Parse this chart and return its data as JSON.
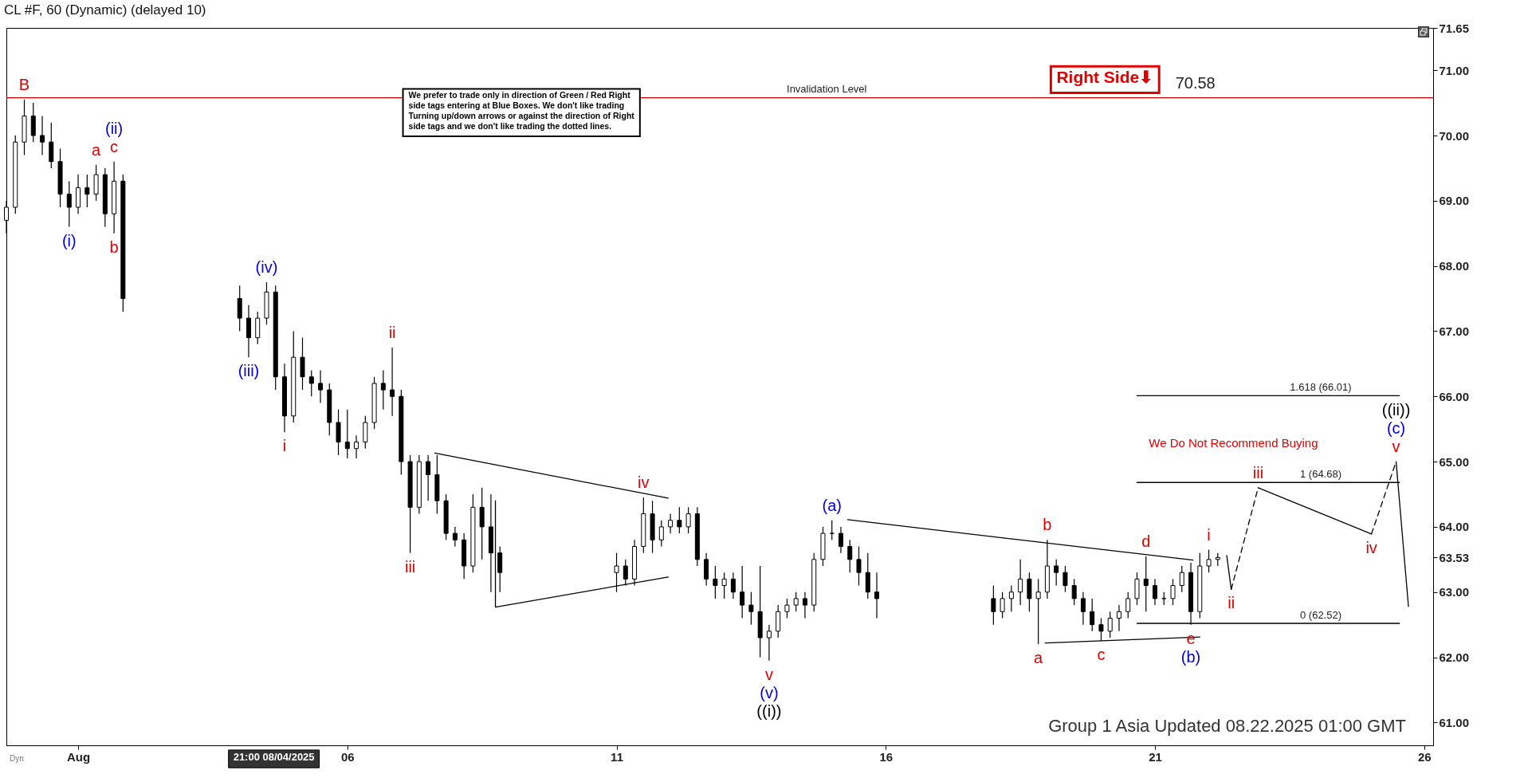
{
  "chart_data": {
    "type": "candlestick",
    "title": "CL #F, 60 (Dynamic) (delayed 10)",
    "color": "#000000",
    "x": [
      "2025-07-30T16:00",
      "2025-07-30T20:00",
      "2025-07-31T00:00",
      "2025-07-31T04:00",
      "2025-07-31T08:00",
      "2025-07-31T12:00",
      "2025-07-31T16:00",
      "2025-07-31T20:00",
      "2025-08-01T00:00",
      "2025-08-01T04:00",
      "2025-08-01T08:00",
      "2025-08-01T12:00",
      "2025-08-01T16:00",
      "2025-08-01T20:00",
      "2025-08-04T00:00",
      "2025-08-04T04:00",
      "2025-08-04T08:00",
      "2025-08-04T12:00",
      "2025-08-04T16:00",
      "2025-08-04T20:00",
      "2025-08-05T00:00",
      "2025-08-05T04:00",
      "2025-08-05T08:00",
      "2025-08-05T12:00",
      "2025-08-05T16:00",
      "2025-08-05T20:00",
      "2025-08-06T00:00",
      "2025-08-06T04:00",
      "2025-08-06T08:00",
      "2025-08-06T12:00",
      "2025-08-06T16:00",
      "2025-08-06T20:00",
      "2025-08-07T00:00",
      "2025-08-07T04:00",
      "2025-08-07T08:00",
      "2025-08-07T12:00",
      "2025-08-07T16:00",
      "2025-08-07T20:00",
      "2025-08-08T00:00",
      "2025-08-08T04:00",
      "2025-08-08T08:00",
      "2025-08-08T12:00",
      "2025-08-08T16:00",
      "2025-08-08T20:00",
      "2025-08-11T00:00",
      "2025-08-11T04:00",
      "2025-08-11T08:00",
      "2025-08-11T12:00",
      "2025-08-11T16:00",
      "2025-08-11T20:00",
      "2025-08-12T00:00",
      "2025-08-12T04:00",
      "2025-08-12T08:00",
      "2025-08-12T12:00",
      "2025-08-12T16:00",
      "2025-08-12T20:00",
      "2025-08-13T00:00",
      "2025-08-13T04:00",
      "2025-08-13T08:00",
      "2025-08-13T12:00",
      "2025-08-13T16:00",
      "2025-08-13T20:00",
      "2025-08-14T00:00",
      "2025-08-14T04:00",
      "2025-08-14T08:00",
      "2025-08-14T12:00",
      "2025-08-14T16:00",
      "2025-08-14T20:00",
      "2025-08-15T00:00",
      "2025-08-15T04:00",
      "2025-08-15T08:00",
      "2025-08-15T12:00",
      "2025-08-15T16:00",
      "2025-08-15T20:00",
      "2025-08-18T00:00",
      "2025-08-18T04:00",
      "2025-08-18T08:00",
      "2025-08-18T12:00",
      "2025-08-18T16:00",
      "2025-08-18T20:00",
      "2025-08-19T00:00",
      "2025-08-19T04:00",
      "2025-08-19T08:00",
      "2025-08-19T12:00",
      "2025-08-19T16:00",
      "2025-08-19T20:00",
      "2025-08-20T00:00",
      "2025-08-20T04:00",
      "2025-08-20T08:00",
      "2025-08-20T12:00",
      "2025-08-20T16:00",
      "2025-08-20T20:00",
      "2025-08-21T00:00",
      "2025-08-21T04:00",
      "2025-08-21T08:00",
      "2025-08-21T12:00",
      "2025-08-21T16:00",
      "2025-08-21T20:00",
      "2025-08-22T00:00",
      "2025-08-22T04:00"
    ],
    "ohlc": [
      [
        68.7,
        69.0,
        68.5,
        68.9
      ],
      [
        68.9,
        70.0,
        68.8,
        69.9
      ],
      [
        69.9,
        70.55,
        69.7,
        70.3
      ],
      [
        70.3,
        70.5,
        69.9,
        70.0
      ],
      [
        70.0,
        70.3,
        69.7,
        69.9
      ],
      [
        69.9,
        70.2,
        69.5,
        69.6
      ],
      [
        69.6,
        69.8,
        68.9,
        69.1
      ],
      [
        69.1,
        69.3,
        68.6,
        68.9
      ],
      [
        68.9,
        69.4,
        68.8,
        69.2
      ],
      [
        69.2,
        69.4,
        68.9,
        69.1
      ],
      [
        69.1,
        69.55,
        69.0,
        69.4
      ],
      [
        69.4,
        69.5,
        68.6,
        68.8
      ],
      [
        68.8,
        69.6,
        68.5,
        69.3
      ],
      [
        69.3,
        69.4,
        67.3,
        67.5
      ],
      [
        67.5,
        67.7,
        67.0,
        67.2
      ],
      [
        67.2,
        67.4,
        66.6,
        66.9
      ],
      [
        66.9,
        67.3,
        66.8,
        67.2
      ],
      [
        67.2,
        67.75,
        67.1,
        67.6
      ],
      [
        67.6,
        67.7,
        66.1,
        66.3
      ],
      [
        66.3,
        66.5,
        65.45,
        65.7
      ],
      [
        65.7,
        67.0,
        65.6,
        66.6
      ],
      [
        66.6,
        66.9,
        66.1,
        66.3
      ],
      [
        66.3,
        66.4,
        66.0,
        66.2
      ],
      [
        66.2,
        66.4,
        65.9,
        66.1
      ],
      [
        66.1,
        66.2,
        65.4,
        65.6
      ],
      [
        65.6,
        65.8,
        65.1,
        65.3
      ],
      [
        65.3,
        65.8,
        65.05,
        65.2
      ],
      [
        65.2,
        65.4,
        65.05,
        65.3
      ],
      [
        65.3,
        65.7,
        65.2,
        65.6
      ],
      [
        65.6,
        66.3,
        65.5,
        66.2
      ],
      [
        66.2,
        66.4,
        65.8,
        66.1
      ],
      [
        66.1,
        66.75,
        65.7,
        66.0
      ],
      [
        66.0,
        66.1,
        64.8,
        65.0
      ],
      [
        65.0,
        65.1,
        63.6,
        64.3
      ],
      [
        64.3,
        65.1,
        64.2,
        65.0
      ],
      [
        65.0,
        65.1,
        64.4,
        64.8
      ],
      [
        64.8,
        65.1,
        64.2,
        64.4
      ],
      [
        64.4,
        64.5,
        63.8,
        63.9
      ],
      [
        63.9,
        64.0,
        63.7,
        63.8
      ],
      [
        63.8,
        63.9,
        63.2,
        63.4
      ],
      [
        63.4,
        64.5,
        63.3,
        64.3
      ],
      [
        64.3,
        64.6,
        63.5,
        64.0
      ],
      [
        64.0,
        64.5,
        63.0,
        63.6
      ],
      [
        63.6,
        63.7,
        63.0,
        63.3
      ],
      [
        63.3,
        63.6,
        63.0,
        63.4
      ],
      [
        63.4,
        63.5,
        63.1,
        63.2
      ],
      [
        63.2,
        63.8,
        63.1,
        63.7
      ],
      [
        63.7,
        64.45,
        63.6,
        64.2
      ],
      [
        64.2,
        64.4,
        63.6,
        63.8
      ],
      [
        63.8,
        64.1,
        63.7,
        64.0
      ],
      [
        64.0,
        64.2,
        63.9,
        64.1
      ],
      [
        64.1,
        64.3,
        63.9,
        64.0
      ],
      [
        64.0,
        64.3,
        63.9,
        64.2
      ],
      [
        64.2,
        64.3,
        63.4,
        63.5
      ],
      [
        63.5,
        63.6,
        63.1,
        63.2
      ],
      [
        63.2,
        63.4,
        62.9,
        63.1
      ],
      [
        63.1,
        63.3,
        62.9,
        63.2
      ],
      [
        63.2,
        63.3,
        62.9,
        63.0
      ],
      [
        63.0,
        63.4,
        62.6,
        62.8
      ],
      [
        62.8,
        63.0,
        62.5,
        62.7
      ],
      [
        62.7,
        63.4,
        62.0,
        62.3
      ],
      [
        62.3,
        62.5,
        61.95,
        62.4
      ],
      [
        62.4,
        62.8,
        62.3,
        62.7
      ],
      [
        62.7,
        62.9,
        62.6,
        62.8
      ],
      [
        62.8,
        63.0,
        62.7,
        62.9
      ],
      [
        62.9,
        63.0,
        62.6,
        62.8
      ],
      [
        62.8,
        63.6,
        62.7,
        63.5
      ],
      [
        63.5,
        64.0,
        63.4,
        63.9
      ],
      [
        63.9,
        64.1,
        63.8,
        63.9
      ],
      [
        63.9,
        64.0,
        63.6,
        63.7
      ],
      [
        63.7,
        63.8,
        63.3,
        63.5
      ],
      [
        63.5,
        63.7,
        63.1,
        63.3
      ],
      [
        63.3,
        63.6,
        62.9,
        63.0
      ],
      [
        63.0,
        63.3,
        62.6,
        62.9
      ],
      [
        62.9,
        63.1,
        62.5,
        62.7
      ],
      [
        62.7,
        63.0,
        62.6,
        62.9
      ],
      [
        62.9,
        63.1,
        62.7,
        63.0
      ],
      [
        63.0,
        63.5,
        62.8,
        63.2
      ],
      [
        63.2,
        63.3,
        62.7,
        62.9
      ],
      [
        62.9,
        63.2,
        62.2,
        63.0
      ],
      [
        63.0,
        63.8,
        62.9,
        63.4
      ],
      [
        63.4,
        63.5,
        63.1,
        63.3
      ],
      [
        63.3,
        63.4,
        63.0,
        63.1
      ],
      [
        63.1,
        63.2,
        62.8,
        62.9
      ],
      [
        62.9,
        63.0,
        62.5,
        62.7
      ],
      [
        62.7,
        62.9,
        62.4,
        62.5
      ],
      [
        62.5,
        62.6,
        62.25,
        62.4
      ],
      [
        62.4,
        62.7,
        62.3,
        62.6
      ],
      [
        62.6,
        62.8,
        62.4,
        62.7
      ],
      [
        62.7,
        63.0,
        62.6,
        62.9
      ],
      [
        62.9,
        63.3,
        62.8,
        63.2
      ],
      [
        63.2,
        63.55,
        62.7,
        63.1
      ],
      [
        63.1,
        63.2,
        62.8,
        62.9
      ],
      [
        62.9,
        63.0,
        62.8,
        62.9
      ],
      [
        62.9,
        63.2,
        62.8,
        63.1
      ],
      [
        63.1,
        63.4,
        63.0,
        63.3
      ],
      [
        63.3,
        63.45,
        62.5,
        62.7
      ],
      [
        62.7,
        63.6,
        62.6,
        63.4
      ],
      [
        63.4,
        63.65,
        63.3,
        63.5
      ],
      [
        63.5,
        63.6,
        63.4,
        63.53
      ]
    ],
    "xlim": [
      "2025-07-30T16:00",
      "2025-08-26T04:00"
    ],
    "xticks": [
      {
        "value": "2025-08-01",
        "label": "Aug"
      },
      {
        "value": "2025-08-06",
        "label": "06"
      },
      {
        "value": "2025-08-11",
        "label": "11"
      },
      {
        "value": "2025-08-16",
        "label": "16"
      },
      {
        "value": "2025-08-21",
        "label": "21"
      },
      {
        "value": "2025-08-26",
        "label": "26"
      }
    ],
    "ylim": [
      60.65,
      71.65
    ],
    "yticks": [
      {
        "value": 61,
        "label": "61.00"
      },
      {
        "value": 62,
        "label": "62.00"
      },
      {
        "value": 63,
        "label": "63.00"
      },
      {
        "value": 63.53,
        "label": "63.53"
      },
      {
        "value": 64,
        "label": "64.00"
      },
      {
        "value": 65,
        "label": "65.00"
      },
      {
        "value": 66,
        "label": "66.00"
      },
      {
        "value": 67,
        "label": "67.00"
      },
      {
        "value": 68,
        "label": "68.00"
      },
      {
        "value": 69,
        "label": "69.00"
      },
      {
        "value": 70,
        "label": "70.00"
      },
      {
        "value": 71,
        "label": "71.00"
      },
      {
        "value": 71.65,
        "label": "71.65"
      }
    ],
    "ref_lines": [
      {
        "axis": "y",
        "value": 70.58,
        "label": "Invalidation Level",
        "color": "#dd0000"
      }
    ],
    "series": [
      {
        "type": "line",
        "color": "#000000",
        "line_style": "solid",
        "x": [
          "2025-08-07T15:00",
          "2025-08-11T23:00"
        ],
        "values": [
          65.13,
          64.44
        ]
      },
      {
        "type": "line",
        "color": "#000000",
        "line_style": "solid",
        "x": [
          "2025-08-08T18:00",
          "2025-08-08T18:00",
          "2025-08-11T23:00"
        ],
        "values": [
          64.4,
          62.77,
          63.23
        ]
      },
      {
        "type": "line",
        "color": "#000000",
        "line_style": "solid",
        "x": [
          "2025-08-15T07:00",
          "2025-08-21T17:00"
        ],
        "values": [
          64.11,
          63.49
        ]
      },
      {
        "type": "line",
        "color": "#000000",
        "line_style": "solid",
        "x": [
          "2025-08-18T23:00",
          "2025-08-21T20:00"
        ],
        "values": [
          62.22,
          62.31
        ]
      },
      {
        "type": "line",
        "name": "1.618 (66.01)",
        "color": "#000000",
        "line_style": "solid",
        "x": [
          "2025-08-20T16:00",
          "2025-08-25T13:00"
        ],
        "values": [
          66.01,
          66.01
        ]
      },
      {
        "type": "line",
        "name": "1 (64.68)",
        "color": "#000000",
        "line_style": "solid",
        "x": [
          "2025-08-20T16:00",
          "2025-08-25T13:00"
        ],
        "values": [
          64.68,
          64.68
        ]
      },
      {
        "type": "line",
        "name": "0 (62.52)",
        "color": "#000000",
        "line_style": "solid",
        "x": [
          "2025-08-20T16:00",
          "2025-08-25T13:00"
        ],
        "values": [
          62.52,
          62.52
        ]
      },
      {
        "type": "line",
        "color": "#000000",
        "line_style": "solid",
        "x": [
          "2025-08-22T08:00",
          "2025-08-22T10:00"
        ],
        "values": [
          63.56,
          63.04
        ]
      },
      {
        "type": "line",
        "color": "#000000",
        "line_style": "dashed",
        "x": [
          "2025-08-22T10:00",
          "2025-08-22T22:00"
        ],
        "values": [
          63.04,
          64.6
        ]
      },
      {
        "type": "line",
        "color": "#000000",
        "line_style": "solid",
        "x": [
          "2025-08-22T22:00",
          "2025-08-25T00:30"
        ],
        "values": [
          64.6,
          63.89
        ]
      },
      {
        "type": "line",
        "color": "#000000",
        "line_style": "dashed",
        "x": [
          "2025-08-25T00:30",
          "2025-08-25T11:30"
        ],
        "values": [
          63.89,
          65.0
        ]
      },
      {
        "type": "line",
        "color": "#000000",
        "line_style": "solid",
        "x": [
          "2025-08-25T11:30",
          "2025-08-25T17:00"
        ],
        "values": [
          65.0,
          62.78
        ]
      }
    ],
    "annotations": [
      {
        "text": "B",
        "x": "2025-07-31T00:00",
        "y": 70.55
      },
      {
        "text": "(i)",
        "x": "2025-07-31T20:00",
        "y": 68.6
      },
      {
        "text": "a",
        "x": "2025-08-01T08:00",
        "y": 69.55
      },
      {
        "text": "b",
        "x": "2025-08-01T16:00",
        "y": 68.5
      },
      {
        "text": "c",
        "x": "2025-08-01T16:00",
        "y": 69.6
      },
      {
        "text": "(ii)",
        "x": "2025-08-01T16:00",
        "y": 69.6
      },
      {
        "text": "(iii)",
        "x": "2025-08-04T04:00",
        "y": 66.6
      },
      {
        "text": "(iv)",
        "x": "2025-08-04T12:00",
        "y": 67.75
      },
      {
        "text": "i",
        "x": "2025-08-04T20:00",
        "y": 65.45
      },
      {
        "text": "ii",
        "x": "2025-08-06T20:00",
        "y": 66.75
      },
      {
        "text": "iii",
        "x": "2025-08-07T04:00",
        "y": 63.6
      },
      {
        "text": "iv",
        "x": "2025-08-11T12:00",
        "y": 64.45
      },
      {
        "text": "v",
        "x": "2025-08-13T20:00",
        "y": 61.95
      },
      {
        "text": "(v)",
        "x": "2025-08-13T20:00",
        "y": 61.95
      },
      {
        "text": "((i))",
        "x": "2025-08-13T20:00",
        "y": 61.95
      },
      {
        "text": "(a)",
        "x": "2025-08-15T00:00",
        "y": 64.1
      },
      {
        "text": "a",
        "x": "2025-08-18T20:00",
        "y": 62.2
      },
      {
        "text": "b",
        "x": "2025-08-19T00:00",
        "y": 63.8
      },
      {
        "text": "c",
        "x": "2025-08-20T00:00",
        "y": 62.25
      },
      {
        "text": "d",
        "x": "2025-08-20T20:00",
        "y": 63.55
      },
      {
        "text": "e",
        "x": "2025-08-21T16:00",
        "y": 62.5
      },
      {
        "text": "(b)",
        "x": "2025-08-21T16:00",
        "y": 62.5
      },
      {
        "text": "i",
        "x": "2025-08-22T00:00",
        "y": 63.65
      },
      {
        "text": "ii",
        "x": "2025-08-22T10:00",
        "y": 63.04
      },
      {
        "text": "iii",
        "x": "2025-08-22T22:00",
        "y": 64.6
      },
      {
        "text": "iv",
        "x": "2025-08-25T00:30",
        "y": 63.89
      },
      {
        "text": "v",
        "x": "2025-08-25T11:30",
        "y": 65.0
      },
      {
        "text": "(c)",
        "x": "2025-08-25T11:30",
        "y": 65.0
      },
      {
        "text": "((ii))",
        "x": "2025-08-25T11:30",
        "y": 65.0
      },
      {
        "text": "70.58",
        "x": "2025-08-21T18:00",
        "y": 70.58
      },
      "Right Side⬇",
      "We prefer to trade only in direction of Green / Red Right\nside tags entering at Blue Boxes. We don't like trading\nTurning up/down arrows or against the direction of Right\nside tags and we don't like trading the dotted lines.",
      "We Do Not Recommend Buying",
      "Group 1 Asia Updated 08.22.2025 01:00 GMT",
      "Dyn",
      "21:00 08/04/2025"
    ]
  }
}
